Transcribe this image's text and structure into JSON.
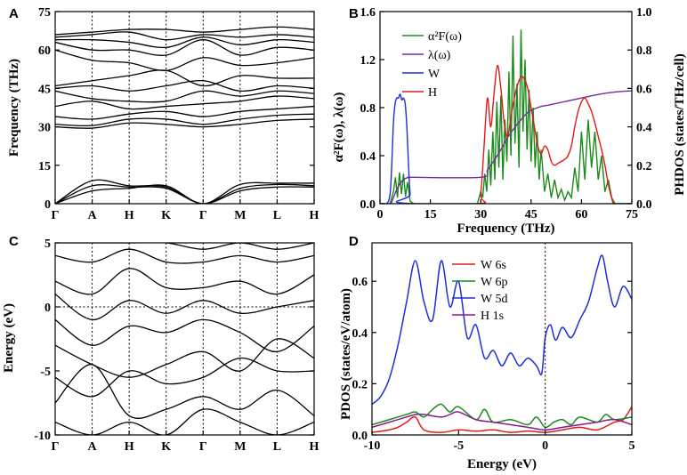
{
  "chart_data": [
    {
      "panel": "A",
      "type": "line",
      "title": "",
      "xlabel": "",
      "ylabel": "Frequency (THz)",
      "ylim": [
        0,
        75
      ],
      "yticks": [
        "0",
        "15",
        "30",
        "45",
        "60",
        "75"
      ],
      "xticks": [
        "Γ",
        "A",
        "H",
        "K",
        "Γ",
        "M",
        "L",
        "H"
      ],
      "kpos": [
        0,
        1,
        2,
        3,
        4,
        5,
        6,
        7
      ],
      "grid": false,
      "band_color": "#000000",
      "series": [
        {
          "name": "b1",
          "values": [
            0,
            9,
            7,
            6.5,
            0,
            6,
            7.5,
            7
          ]
        },
        {
          "name": "b2",
          "values": [
            0,
            7,
            6.5,
            6,
            0,
            5,
            6.5,
            6.5
          ]
        },
        {
          "name": "b3",
          "values": [
            0,
            5,
            6,
            7,
            0,
            7.5,
            8,
            8
          ]
        },
        {
          "name": "b4",
          "values": [
            30,
            29.5,
            31.5,
            31,
            30,
            31,
            32.5,
            33
          ]
        },
        {
          "name": "b5",
          "values": [
            31,
            30.5,
            33,
            33,
            31,
            33,
            34.5,
            35
          ]
        },
        {
          "name": "b6",
          "values": [
            34,
            33,
            35,
            36,
            34,
            36,
            37,
            38
          ]
        },
        {
          "name": "b7",
          "values": [
            38,
            40,
            37,
            38,
            39,
            40,
            42,
            41
          ]
        },
        {
          "name": "b8",
          "values": [
            44,
            41,
            40,
            40,
            44,
            42,
            44,
            43
          ]
        },
        {
          "name": "b9",
          "values": [
            45,
            46,
            44,
            46,
            48,
            44,
            46,
            45
          ]
        },
        {
          "name": "b10",
          "values": [
            46,
            48,
            50,
            52,
            46,
            50,
            49,
            49
          ]
        },
        {
          "name": "b11",
          "values": [
            60,
            56,
            55,
            52,
            57,
            54,
            55,
            57
          ]
        },
        {
          "name": "b12",
          "values": [
            63,
            60,
            60,
            58,
            64,
            58,
            61,
            60
          ]
        },
        {
          "name": "b13",
          "values": [
            64,
            64,
            63,
            61,
            65,
            62,
            64,
            63
          ]
        },
        {
          "name": "b14",
          "values": [
            65,
            66,
            67,
            64,
            66,
            65,
            66,
            65
          ]
        },
        {
          "name": "b15",
          "values": [
            66,
            67,
            68,
            68,
            67,
            68,
            69,
            68
          ]
        }
      ]
    },
    {
      "panel": "B",
      "type": "line",
      "title": "",
      "xlabel": "Frequency (THz)",
      "ylabel_left": "α²F(ω), λ(ω)",
      "ylabel_right": "PHDOS (states/THz/cell)",
      "xlim": [
        0,
        75
      ],
      "ylim_left": [
        0,
        1.6
      ],
      "ylim_right": [
        0,
        1.0
      ],
      "xticks": [
        "0",
        "15",
        "30",
        "45",
        "60",
        "75"
      ],
      "yticks_left": [
        "0.0",
        "0.4",
        "0.8",
        "1.2",
        "1.6"
      ],
      "yticks_right": [
        "0.0",
        "0.2",
        "0.4",
        "0.6",
        "0.8",
        "1.0"
      ],
      "legend_position": "top-left",
      "grid": false,
      "series": [
        {
          "name": "α²F(ω)",
          "axis": "left",
          "color": "#1a8a1a",
          "x": [
            0,
            3,
            4,
            4.6,
            5.2,
            5.8,
            6.4,
            7,
            7.6,
            8.2,
            9,
            10,
            29,
            30,
            30.6,
            31.2,
            31.8,
            32.4,
            33,
            33.6,
            34.2,
            34.8,
            35.4,
            36,
            36.6,
            37.2,
            37.8,
            38.4,
            39,
            39.6,
            40.2,
            40.8,
            41.4,
            42,
            42.6,
            43.2,
            43.8,
            44.4,
            45,
            45.6,
            46.2,
            46.8,
            47.4,
            48,
            49,
            50,
            51,
            52,
            53,
            54,
            55,
            56,
            57,
            58,
            59,
            60,
            61,
            62,
            63,
            64,
            65,
            66,
            67,
            68,
            69,
            70,
            75
          ],
          "y": [
            0,
            0,
            0.1,
            0.22,
            0.05,
            0.26,
            0.08,
            0.25,
            0.06,
            0.18,
            0.02,
            0,
            0,
            0.1,
            0.05,
            0.25,
            0.1,
            0.45,
            0.15,
            0.6,
            0.2,
            0.85,
            0.3,
            0.9,
            0.2,
            0.7,
            0.35,
            1.1,
            0.4,
            1.4,
            0.5,
            1.0,
            0.3,
            1.45,
            0.6,
            1.2,
            0.45,
            0.95,
            0.35,
            0.8,
            0.3,
            0.6,
            0.2,
            0.45,
            0.1,
            0.25,
            0.05,
            0.2,
            0.05,
            0.12,
            0.03,
            0.1,
            0.05,
            0.3,
            0.1,
            0.6,
            0.2,
            0.7,
            0.3,
            0.6,
            0.2,
            0.4,
            0.1,
            0.2,
            0.05,
            0,
            0
          ]
        },
        {
          "name": "λ(ω)",
          "axis": "left",
          "color": "#7a2a9a",
          "x": [
            0,
            3,
            4,
            5,
            6,
            7,
            8,
            9,
            10,
            30,
            32,
            34,
            36,
            38,
            40,
            42,
            44,
            46,
            48,
            50,
            55,
            60,
            65,
            70,
            75
          ],
          "y": [
            0,
            0,
            0.05,
            0.12,
            0.17,
            0.2,
            0.215,
            0.22,
            0.22,
            0.22,
            0.28,
            0.36,
            0.45,
            0.55,
            0.63,
            0.7,
            0.76,
            0.79,
            0.81,
            0.82,
            0.85,
            0.88,
            0.91,
            0.93,
            0.94
          ]
        },
        {
          "name": "W",
          "axis": "right",
          "color": "#1f2ed8",
          "x": [
            0,
            2,
            3,
            3.5,
            4,
            4.5,
            5,
            5.5,
            6,
            6.5,
            7,
            7.5,
            8,
            8.5,
            9,
            10,
            75
          ],
          "y": [
            0,
            0,
            0.05,
            0.2,
            0.42,
            0.52,
            0.55,
            0.55,
            0.57,
            0.54,
            0.55,
            0.52,
            0.4,
            0.2,
            0.05,
            0,
            0
          ]
        },
        {
          "name": "H",
          "axis": "right",
          "color": "#e01a1a",
          "x": [
            0,
            29,
            30,
            31,
            32,
            33,
            34,
            35,
            36,
            37,
            38,
            39,
            40,
            41,
            42,
            43,
            44,
            45,
            46,
            47,
            48,
            49,
            50,
            51,
            52,
            53,
            54,
            55,
            56,
            57,
            58,
            59,
            60,
            61,
            62,
            63,
            64,
            65,
            66,
            67,
            68,
            69,
            70,
            75
          ],
          "y": [
            0,
            0,
            0.05,
            0.3,
            0.55,
            0.4,
            0.58,
            0.72,
            0.6,
            0.42,
            0.35,
            0.45,
            0.55,
            0.62,
            0.66,
            0.65,
            0.6,
            0.5,
            0.4,
            0.3,
            0.26,
            0.3,
            0.28,
            0.22,
            0.2,
            0.21,
            0.22,
            0.23,
            0.25,
            0.3,
            0.4,
            0.48,
            0.53,
            0.55,
            0.52,
            0.48,
            0.42,
            0.35,
            0.28,
            0.2,
            0.1,
            0.03,
            0,
            0
          ]
        }
      ]
    },
    {
      "panel": "C",
      "type": "line",
      "title": "",
      "xlabel": "",
      "ylabel": "Energy (eV)",
      "ylim": [
        -10,
        5
      ],
      "yticks": [
        "-10",
        "-5",
        "0",
        "5"
      ],
      "xticks": [
        "Γ",
        "A",
        "H",
        "K",
        "Γ",
        "M",
        "L",
        "H"
      ],
      "kpos": [
        0,
        1,
        2,
        3,
        4,
        5,
        6,
        7
      ],
      "fermi_level": 0,
      "grid": false,
      "band_color": "#000000",
      "series": [
        {
          "name": "e1",
          "values": [
            -9,
            -10,
            -9,
            -10,
            -8,
            -9,
            -10,
            -9
          ]
        },
        {
          "name": "e2",
          "values": [
            -7.5,
            -4.5,
            -8.5,
            -8,
            -7,
            -8,
            -6.5,
            -8.5
          ]
        },
        {
          "name": "e3",
          "values": [
            -5.5,
            -7,
            -5,
            -6,
            -5.5,
            -4,
            -5,
            -5
          ]
        },
        {
          "name": "e4",
          "values": [
            -3,
            -4.5,
            -5.5,
            -4.5,
            -3.5,
            -5,
            -2.5,
            -4
          ]
        },
        {
          "name": "e5",
          "values": [
            -1,
            -3,
            -1.5,
            -2,
            -1,
            -2,
            -3.5,
            -1.5
          ]
        },
        {
          "name": "e6",
          "values": [
            1,
            -1,
            0.5,
            -0.5,
            0.5,
            -0.5,
            0,
            0.5
          ]
        },
        {
          "name": "e7",
          "values": [
            2,
            1,
            3,
            1.5,
            1.5,
            2,
            1,
            2.5
          ]
        },
        {
          "name": "e8",
          "values": [
            4,
            3.5,
            4.5,
            3.5,
            3.5,
            4,
            3.5,
            4
          ]
        },
        {
          "name": "e9",
          "values": [
            5,
            5,
            5,
            5,
            4.5,
            5,
            4.5,
            5
          ]
        }
      ]
    },
    {
      "panel": "D",
      "type": "line",
      "title": "",
      "xlabel": "Energy (eV)",
      "ylabel": "PDOS (states/eV/atom)",
      "xlim": [
        -10,
        5
      ],
      "ylim": [
        0,
        0.75
      ],
      "xticks": [
        "-10",
        "-5",
        "0",
        "5"
      ],
      "yticks": [
        "0.0",
        "0.2",
        "0.4",
        "0.6"
      ],
      "fermi_level": 0,
      "legend_position": "top-center",
      "grid": false,
      "series": [
        {
          "name": "W 6s",
          "color": "#e01a1a",
          "x": [
            -10,
            -9,
            -8.5,
            -8,
            -7.5,
            -7,
            -6,
            -5,
            -4,
            -3,
            -2,
            -1,
            0,
            1,
            2,
            3,
            4,
            4.5,
            5
          ],
          "y": [
            0.01,
            0.02,
            0.03,
            0.05,
            0.07,
            0.02,
            0.01,
            0.02,
            0.015,
            0.02,
            0.01,
            0.015,
            0.01,
            0.02,
            0.03,
            0.02,
            0.05,
            0.06,
            0.11
          ]
        },
        {
          "name": "W 6p",
          "color": "#1a8a1a",
          "x": [
            -10,
            -9,
            -8,
            -7.5,
            -7,
            -6.5,
            -6,
            -5.5,
            -5,
            -4,
            -3.5,
            -3,
            -2,
            -1,
            -0.5,
            0,
            0.5,
            1,
            1.5,
            2,
            3,
            3.5,
            4,
            5
          ],
          "y": [
            0.04,
            0.06,
            0.08,
            0.09,
            0.07,
            0.1,
            0.12,
            0.09,
            0.11,
            0.06,
            0.1,
            0.05,
            0.06,
            0.04,
            0.07,
            0.03,
            0.05,
            0.06,
            0.04,
            0.07,
            0.05,
            0.08,
            0.06,
            0.07
          ]
        },
        {
          "name": "W 5d",
          "color": "#1f2ed8",
          "x": [
            -10,
            -9.5,
            -9,
            -8.5,
            -8,
            -7.5,
            -7,
            -6.5,
            -6,
            -5.5,
            -5,
            -4.5,
            -4,
            -3.5,
            -3,
            -2.5,
            -2,
            -1.5,
            -1,
            -0.5,
            -0.2,
            0,
            0.3,
            0.6,
            1,
            1.5,
            2,
            2.5,
            3,
            3.3,
            3.6,
            4,
            4.5,
            5
          ],
          "y": [
            0.12,
            0.15,
            0.22,
            0.35,
            0.52,
            0.68,
            0.52,
            0.45,
            0.68,
            0.5,
            0.6,
            0.38,
            0.43,
            0.3,
            0.33,
            0.27,
            0.32,
            0.27,
            0.3,
            0.27,
            0.24,
            0.38,
            0.43,
            0.37,
            0.42,
            0.38,
            0.45,
            0.52,
            0.65,
            0.7,
            0.6,
            0.5,
            0.58,
            0.53
          ]
        },
        {
          "name": "H 1s",
          "color": "#8a1a8a",
          "x": [
            -10,
            -9,
            -8,
            -7.5,
            -7,
            -6,
            -5.5,
            -5,
            -4,
            -3,
            -2,
            -1,
            0,
            1,
            2,
            3,
            4,
            5
          ],
          "y": [
            0.03,
            0.05,
            0.07,
            0.08,
            0.08,
            0.07,
            0.08,
            0.09,
            0.06,
            0.05,
            0.04,
            0.03,
            0.02,
            0.03,
            0.04,
            0.05,
            0.06,
            0.04
          ]
        }
      ]
    }
  ]
}
